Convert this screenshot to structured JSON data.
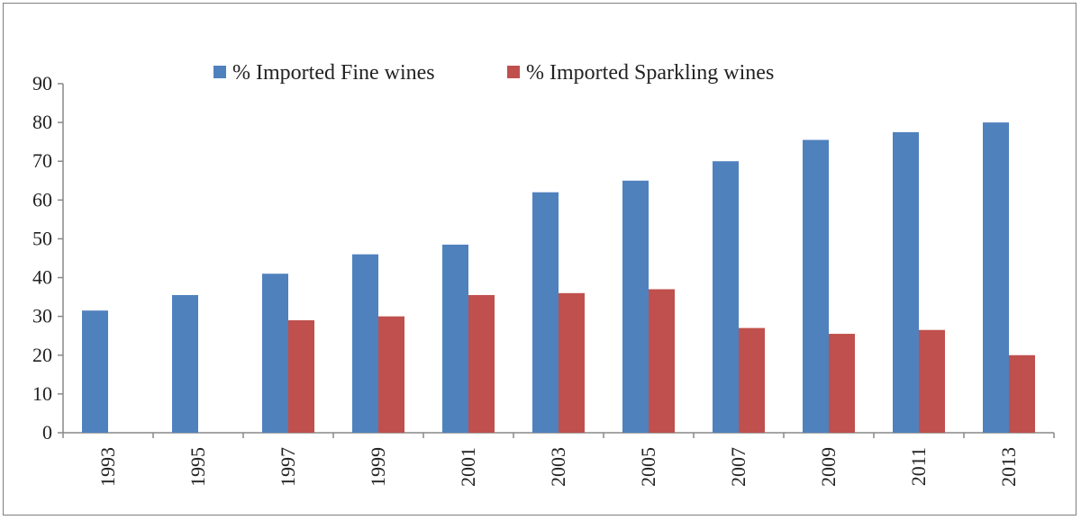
{
  "chart_data": {
    "type": "bar",
    "categories": [
      "1993",
      "1995",
      "1997",
      "1999",
      "2001",
      "2003",
      "2005",
      "2007",
      "2009",
      "2011",
      "2013"
    ],
    "series": [
      {
        "name": "% Imported Fine wines",
        "color": "#4f81bd",
        "values": [
          31.5,
          35.5,
          41,
          46,
          48.5,
          62,
          65,
          70,
          75.5,
          77.5,
          80
        ]
      },
      {
        "name": "% Imported Sparkling wines",
        "color": "#c0504d",
        "values": [
          null,
          null,
          29,
          30,
          35.5,
          36,
          37,
          27,
          25.5,
          26.5,
          20
        ]
      }
    ],
    "ylim": [
      0,
      90
    ],
    "yticks": [
      "0",
      "10",
      "20",
      "30",
      "40",
      "50",
      "60",
      "70",
      "80",
      "90"
    ],
    "legend_position": "top-center",
    "grid": false
  }
}
